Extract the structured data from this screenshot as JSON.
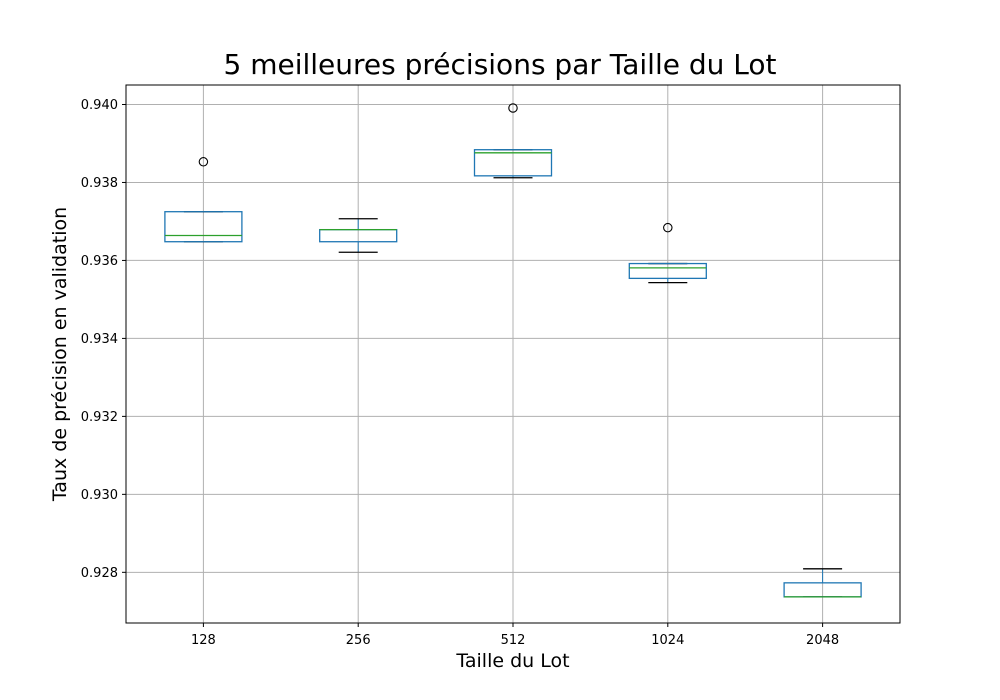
{
  "chart_data": {
    "type": "box",
    "title": "5 meilleures précisions par Taille du Lot",
    "xlabel": "Taille du Lot",
    "ylabel": "Taux de précision en validation",
    "ylim": [
      0.9267,
      0.9405
    ],
    "yticks": [
      "0.928",
      "0.930",
      "0.932",
      "0.934",
      "0.936",
      "0.938",
      "0.940"
    ],
    "grid": true,
    "categories": [
      "128",
      "256",
      "512",
      "1024",
      "2048"
    ],
    "boxes": [
      {
        "category": "128",
        "whisker_low": 0.93648,
        "q1": 0.93648,
        "median": 0.93664,
        "q3": 0.93725,
        "whisker_high": 0.93725,
        "outliers": [
          0.93853
        ]
      },
      {
        "category": "256",
        "whisker_low": 0.93621,
        "q1": 0.93648,
        "median": 0.93679,
        "q3": 0.93679,
        "whisker_high": 0.93707,
        "outliers": []
      },
      {
        "category": "512",
        "whisker_low": 0.93812,
        "q1": 0.93817,
        "median": 0.93876,
        "q3": 0.93884,
        "whisker_high": 0.93884,
        "outliers": [
          0.93991
        ]
      },
      {
        "category": "1024",
        "whisker_low": 0.93543,
        "q1": 0.93554,
        "median": 0.93581,
        "q3": 0.93592,
        "whisker_high": 0.93592,
        "outliers": [
          0.93684
        ]
      },
      {
        "category": "2048",
        "whisker_low": 0.92737,
        "q1": 0.92737,
        "median": 0.92737,
        "q3": 0.92773,
        "whisker_high": 0.92809,
        "outliers": []
      }
    ],
    "colors": {
      "box": "#1f77b4",
      "median": "#2ca02c",
      "whisker": "#000000",
      "grid": "#b0b0b0"
    }
  }
}
